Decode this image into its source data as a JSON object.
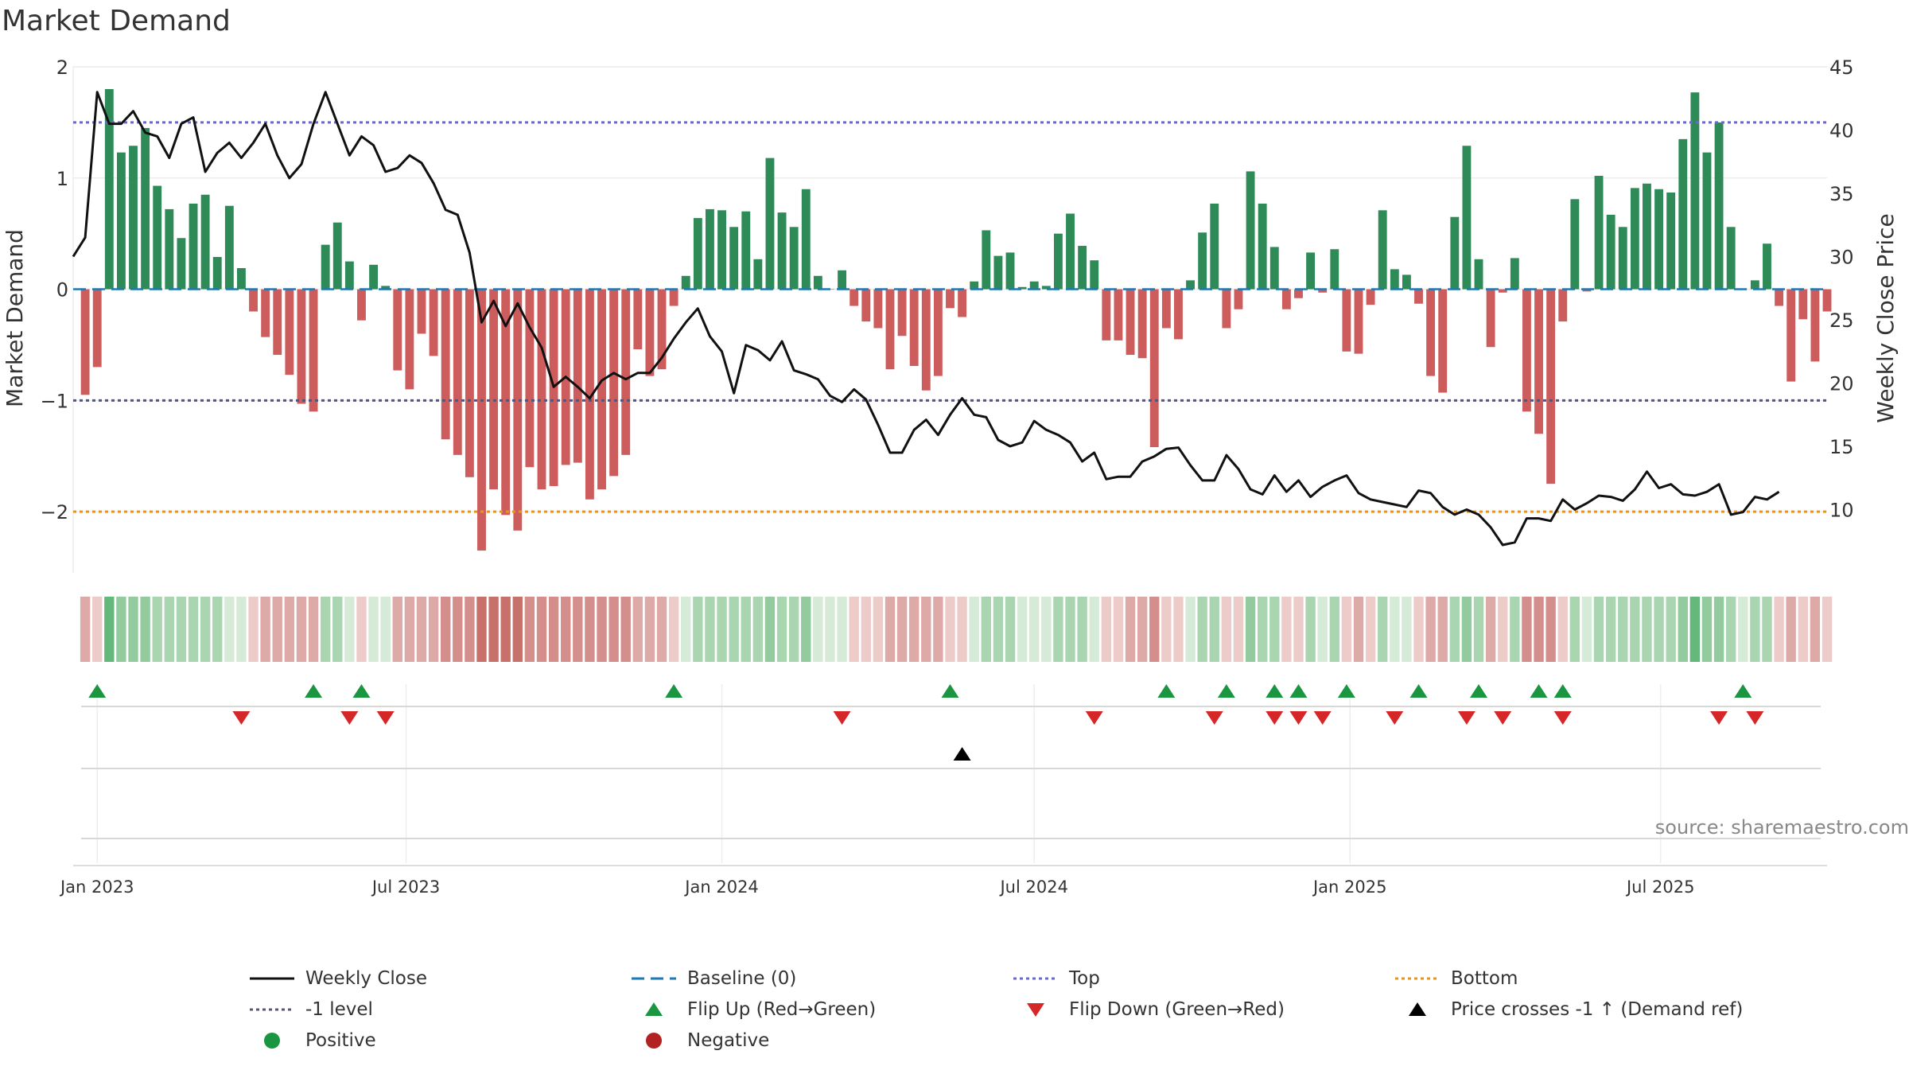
{
  "chart_data": {
    "type": "bar",
    "title": "Market Demand",
    "ylabel": "Market Demand",
    "ylabel_right": "Weekly Close Price",
    "ylim": [
      -2.55,
      2.0
    ],
    "ylim_right": [
      5.0,
      45.0
    ],
    "yticks": [
      -2,
      -1,
      0,
      1,
      2
    ],
    "yticks_right": [
      10,
      15,
      20,
      25,
      30,
      35,
      40,
      45
    ],
    "x_start": "2022-12-19",
    "x_end": "2025-10-06",
    "x_tick_labels": [
      {
        "date": "2023-01-02",
        "label": "Jan 2023"
      },
      {
        "date": "2023-07-01",
        "label": "Jul 2023"
      },
      {
        "date": "2024-01-01",
        "label": "Jan 2024"
      },
      {
        "date": "2024-07-01",
        "label": "Jul 2024"
      },
      {
        "date": "2025-01-01",
        "label": "Jan 2025"
      },
      {
        "date": "2025-07-01",
        "label": "Jul 2025"
      }
    ],
    "reference_lines": {
      "top": 1.5,
      "bottom": -2.0,
      "minus_one": -1.0,
      "baseline": 0
    },
    "series": [
      {
        "name": "Market Demand",
        "start_date": "2022-12-26",
        "values": [
          -0.95,
          -0.7,
          1.8,
          1.23,
          1.29,
          1.45,
          0.93,
          0.72,
          0.46,
          0.77,
          0.85,
          0.29,
          0.75,
          0.19,
          -0.2,
          -0.43,
          -0.59,
          -0.77,
          -1.03,
          -1.1,
          0.4,
          0.6,
          0.25,
          -0.28,
          0.22,
          0.03,
          -0.73,
          -0.9,
          -0.4,
          -0.6,
          -1.35,
          -1.49,
          -1.69,
          -2.35,
          -1.8,
          -2.03,
          -2.17,
          -1.6,
          -1.8,
          -1.77,
          -1.58,
          -1.56,
          -1.89,
          -1.8,
          -1.68,
          -1.49,
          -0.54,
          -0.78,
          -0.72,
          -0.15,
          0.12,
          0.64,
          0.72,
          0.71,
          0.56,
          0.7,
          0.27,
          1.18,
          0.69,
          0.56,
          0.9,
          0.12,
          0.0,
          0.17,
          -0.15,
          -0.29,
          -0.35,
          -0.72,
          -0.42,
          -0.69,
          -0.91,
          -0.78,
          -0.17,
          -0.25,
          0.07,
          0.53,
          0.3,
          0.33,
          0.02,
          0.07,
          0.03,
          0.5,
          0.68,
          0.39,
          0.26,
          -0.46,
          -0.46,
          -0.59,
          -0.62,
          -1.42,
          -0.35,
          -0.45,
          0.08,
          0.51,
          0.77,
          -0.35,
          -0.18,
          1.06,
          0.77,
          0.38,
          -0.18,
          -0.08,
          0.33,
          -0.03,
          0.36,
          -0.56,
          -0.58,
          -0.14,
          0.71,
          0.18,
          0.13,
          -0.13,
          -0.78,
          -0.93,
          0.65,
          1.29,
          0.27,
          -0.52,
          -0.03,
          0.28,
          -1.1,
          -1.3,
          -1.75,
          -0.29,
          0.81,
          -0.02,
          1.02,
          0.67,
          0.56,
          0.91,
          0.95,
          0.9,
          0.87,
          1.35,
          1.77,
          1.23,
          1.5,
          0.56,
          0.0,
          0.08,
          0.41,
          -0.15,
          -0.83,
          -0.27,
          -0.65,
          -0.2
        ]
      },
      {
        "name": "Weekly Close",
        "start_date": "2022-12-19",
        "values": [
          30.0,
          31.5,
          43.0,
          40.5,
          40.5,
          41.5,
          39.8,
          39.5,
          37.8,
          40.5,
          41.0,
          36.7,
          38.2,
          39.0,
          37.8,
          39.0,
          40.5,
          38.0,
          36.2,
          37.3,
          40.5,
          43.0,
          40.5,
          38.0,
          39.5,
          38.8,
          36.7,
          37.0,
          38.0,
          37.4,
          35.8,
          33.7,
          33.3,
          30.3,
          24.8,
          26.5,
          24.5,
          26.3,
          24.4,
          22.8,
          19.7,
          20.5,
          19.7,
          18.8,
          20.2,
          20.8,
          20.3,
          20.8,
          20.8,
          22.0,
          23.5,
          24.8,
          25.9,
          23.7,
          22.5,
          19.2,
          23.0,
          22.6,
          21.8,
          23.3,
          21.0,
          20.7,
          20.3,
          19.0,
          18.5,
          19.5,
          18.7,
          16.7,
          14.5,
          14.5,
          16.3,
          17.1,
          15.9,
          17.5,
          18.8,
          17.5,
          17.3,
          15.5,
          15.0,
          15.3,
          17.0,
          16.3,
          15.9,
          15.3,
          13.8,
          14.5,
          12.4,
          12.6,
          12.6,
          13.8,
          14.2,
          14.8,
          14.9,
          13.5,
          12.3,
          12.3,
          14.3,
          13.2,
          11.6,
          11.2,
          12.7,
          11.4,
          12.3,
          11.0,
          11.8,
          12.3,
          12.7,
          11.3,
          10.8,
          10.6,
          10.4,
          10.2,
          11.5,
          11.3,
          10.2,
          9.6,
          10.0,
          9.6,
          8.6,
          7.2,
          7.4,
          9.3,
          9.3,
          9.1,
          10.8,
          10.0,
          10.5,
          11.1,
          11.0,
          10.7,
          11.6,
          13.0,
          11.7,
          12.0,
          11.2,
          11.1,
          11.4,
          12.0,
          9.6,
          9.8,
          11.0,
          10.8,
          11.4
        ]
      }
    ],
    "state_strip": {
      "start_date": "2022-12-26",
      "palette": [
        "#c8706a",
        "#d48e8c",
        "#deaaa7",
        "#edcbc9",
        "#d6ead8",
        "#a9d6b0",
        "#93cb9e",
        "#64b87b"
      ],
      "values": [
        2,
        3,
        7,
        6,
        6,
        6,
        5,
        5,
        5,
        5,
        5,
        5,
        4,
        4,
        3,
        2,
        2,
        2,
        2,
        2,
        5,
        5,
        4,
        3,
        4,
        4,
        2,
        2,
        2,
        2,
        1,
        1,
        1,
        0,
        0,
        0,
        0,
        1,
        1,
        1,
        1,
        1,
        1,
        1,
        1,
        1,
        2,
        2,
        2,
        3,
        4,
        5,
        5,
        5,
        5,
        5,
        5,
        6,
        5,
        5,
        6,
        4,
        4,
        4,
        3,
        3,
        3,
        2,
        2,
        2,
        2,
        2,
        3,
        3,
        4,
        5,
        5,
        5,
        4,
        4,
        4,
        5,
        5,
        5,
        4,
        3,
        3,
        2,
        2,
        1,
        3,
        3,
        4,
        5,
        5,
        3,
        3,
        6,
        5,
        5,
        3,
        3,
        5,
        4,
        5,
        3,
        2,
        3,
        5,
        4,
        4,
        3,
        2,
        2,
        5,
        6,
        5,
        2,
        3,
        5,
        1,
        1,
        1,
        3,
        5,
        4,
        5,
        5,
        5,
        5,
        5,
        5,
        5,
        6,
        7,
        6,
        6,
        5,
        4,
        5,
        5,
        3,
        2,
        3,
        2,
        3
      ]
    },
    "flip_up_dates": [
      "2023-01-02",
      "2023-05-08",
      "2023-06-05",
      "2023-12-04",
      "2024-05-13",
      "2024-09-16",
      "2024-10-21",
      "2024-11-18",
      "2024-12-02",
      "2024-12-30",
      "2025-02-10",
      "2025-03-17",
      "2025-04-21",
      "2025-05-05",
      "2025-08-18"
    ],
    "flip_down_dates": [
      "2023-03-27",
      "2023-05-29",
      "2023-06-19",
      "2024-03-11",
      "2024-08-05",
      "2024-10-14",
      "2024-11-18",
      "2024-12-02",
      "2024-12-16",
      "2025-01-27",
      "2025-03-10",
      "2025-03-31",
      "2025-05-05",
      "2025-08-04",
      "2025-08-25"
    ],
    "cross_dates": [
      "2024-05-20"
    ],
    "source_text": "source: sharemaestro.com",
    "colors": {
      "positive_bar": "#2e8b57",
      "negative_bar": "#cd5c5c",
      "price_line": "#111111",
      "baseline": "#1f77b4",
      "top_line": "#6a6acd",
      "bottom_line": "#e69520",
      "minus_one_line": "#555577",
      "flip_up": "#1a9641",
      "flip_down": "#d62728",
      "cross_marker": "#000000",
      "positive_dot": "#1a9641",
      "negative_dot": "#b22222"
    },
    "legend": [
      {
        "kind": "line-solid",
        "label": "Weekly Close",
        "color": "#111111"
      },
      {
        "kind": "line-dash",
        "label": "Baseline (0)",
        "color": "#1f77b4"
      },
      {
        "kind": "line-dot",
        "label": "Top",
        "color": "#6a6acd"
      },
      {
        "kind": "line-dot",
        "label": "Bottom",
        "color": "#e69520"
      },
      {
        "kind": "line-dot",
        "label": "-1 level",
        "color": "#555577"
      },
      {
        "kind": "tri-up",
        "label": "Flip Up (Red→Green)",
        "color": "#1a9641"
      },
      {
        "kind": "tri-down",
        "label": "Flip Down (Green→Red)",
        "color": "#d62728"
      },
      {
        "kind": "tri-up",
        "label": "Price crosses -1 ↑ (Demand ref)",
        "color": "#000000"
      },
      {
        "kind": "dot",
        "label": "Positive",
        "color": "#1a9641"
      },
      {
        "kind": "dot",
        "label": "Negative",
        "color": "#b22222"
      }
    ]
  }
}
